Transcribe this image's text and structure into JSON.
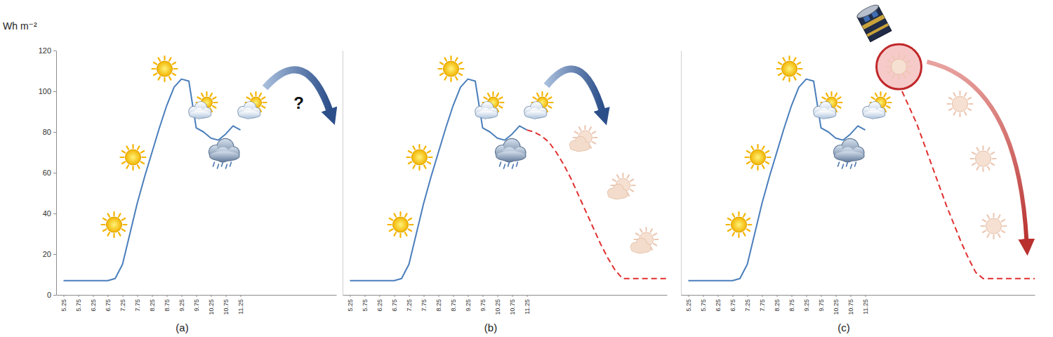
{
  "chart_data": [
    {
      "type": "line",
      "title": "(a)",
      "y_label": "Wh m⁻²",
      "annotations": [
        "?"
      ],
      "x": [
        5.25,
        5.5,
        5.75,
        6,
        6.25,
        6.5,
        6.75,
        7,
        7.25,
        7.5,
        7.75,
        8,
        8.25,
        8.5,
        8.75,
        9,
        9.25,
        9.5,
        9.75,
        10,
        10.25,
        10.5,
        10.75,
        11,
        11.25
      ],
      "xlim": [
        5,
        14.5
      ],
      "xticks": [
        5.25,
        5.75,
        6.25,
        6.75,
        7.25,
        7.75,
        8.25,
        8.75,
        9.25,
        9.75,
        10.25,
        10.75,
        11.25
      ],
      "ylim": [
        0,
        120
      ],
      "yticks": [
        0,
        20,
        40,
        60,
        80,
        100,
        120
      ],
      "grid": false,
      "series": [
        {
          "color": "#4a7ebb",
          "line_style": "solid",
          "values": [
            7,
            7,
            7,
            7,
            7,
            7,
            7,
            8,
            15,
            30,
            45,
            58,
            70,
            82,
            93,
            102,
            106,
            105,
            82,
            80,
            77,
            76,
            79,
            83,
            81
          ]
        }
      ]
    },
    {
      "type": "line",
      "title": "(b)",
      "tick_labels": "x",
      "x": [
        5.25,
        5.5,
        5.75,
        6,
        6.25,
        6.5,
        6.75,
        7,
        7.25,
        7.5,
        7.75,
        8,
        8.25,
        8.5,
        8.75,
        9,
        9.25,
        9.5,
        9.75,
        10,
        10.25,
        10.5,
        10.75,
        11,
        11.25,
        11.5,
        11.75,
        12,
        12.25,
        12.5,
        12.75,
        13,
        13.25,
        13.5,
        13.75,
        14,
        14.25,
        14.5,
        14.75,
        15,
        15.25,
        15.5,
        15.75,
        16
      ],
      "xlim": [
        5,
        16
      ],
      "xticks": [
        5.25,
        5.75,
        6.25,
        6.75,
        7.25,
        7.75,
        8.25,
        8.75,
        9.25,
        9.75,
        10.25,
        10.75,
        11.25
      ],
      "ylim": [
        0,
        120
      ],
      "grid": false,
      "series": [
        {
          "color": "#4a7ebb",
          "line_style": "solid",
          "values": [
            7,
            7,
            7,
            7,
            7,
            7,
            7,
            8,
            15,
            30,
            45,
            58,
            70,
            82,
            93,
            102,
            106,
            105,
            82,
            80,
            77,
            76,
            79,
            83,
            81,
            null,
            null,
            null,
            null,
            null,
            null,
            null,
            null,
            null,
            null,
            null,
            null,
            null,
            null,
            null,
            null,
            null,
            null,
            null
          ]
        },
        {
          "color": "#e0302f",
          "line_style": "dashed",
          "values": [
            null,
            null,
            null,
            null,
            null,
            null,
            null,
            null,
            null,
            null,
            null,
            null,
            null,
            null,
            null,
            null,
            null,
            null,
            null,
            null,
            null,
            null,
            null,
            null,
            81,
            80,
            78,
            75,
            70,
            64,
            57,
            49,
            41,
            33,
            25,
            18,
            12,
            8,
            8,
            8,
            8,
            8,
            8,
            8
          ]
        }
      ]
    },
    {
      "type": "line",
      "title": "(c)",
      "tick_labels": "x",
      "x": [
        5.25,
        5.5,
        5.75,
        6,
        6.25,
        6.5,
        6.75,
        7,
        7.25,
        7.5,
        7.75,
        8,
        8.25,
        8.5,
        8.75,
        9,
        9.25,
        9.5,
        9.75,
        10,
        10.25,
        10.5,
        10.75,
        11,
        11.25,
        11.5,
        11.75,
        12,
        12.25,
        12.5,
        12.75,
        13,
        13.25,
        13.5,
        13.75,
        14,
        14.25,
        14.5,
        14.75,
        15,
        15.25,
        15.5,
        15.75,
        16,
        16.25,
        16.5,
        16.75,
        17
      ],
      "xlim": [
        5,
        17
      ],
      "xticks": [
        5.25,
        5.75,
        6.25,
        6.75,
        7.25,
        7.75,
        8.25,
        8.75,
        9.25,
        9.75,
        10.25,
        10.75,
        11.25
      ],
      "ylim": [
        0,
        120
      ],
      "grid": false,
      "series": [
        {
          "color": "#4a7ebb",
          "line_style": "solid",
          "values": [
            7,
            7,
            7,
            7,
            7,
            7,
            7,
            8,
            15,
            30,
            45,
            58,
            70,
            82,
            93,
            102,
            106,
            105,
            82,
            80,
            77,
            76,
            79,
            83,
            81,
            null,
            null,
            null,
            null,
            null,
            null,
            null,
            null,
            null,
            null,
            null,
            null,
            null,
            null,
            null,
            null,
            null,
            null,
            null,
            null,
            null,
            null,
            null
          ]
        },
        {
          "color": "#e0302f",
          "line_style": "dashed",
          "values": [
            null,
            null,
            null,
            null,
            null,
            null,
            null,
            null,
            null,
            null,
            null,
            null,
            null,
            null,
            null,
            null,
            null,
            null,
            null,
            null,
            null,
            null,
            null,
            null,
            null,
            null,
            null,
            null,
            null,
            100,
            92,
            84,
            74,
            64,
            54,
            44,
            35,
            26,
            18,
            11,
            8,
            8,
            8,
            8,
            8,
            8,
            8,
            8
          ]
        }
      ]
    }
  ]
}
